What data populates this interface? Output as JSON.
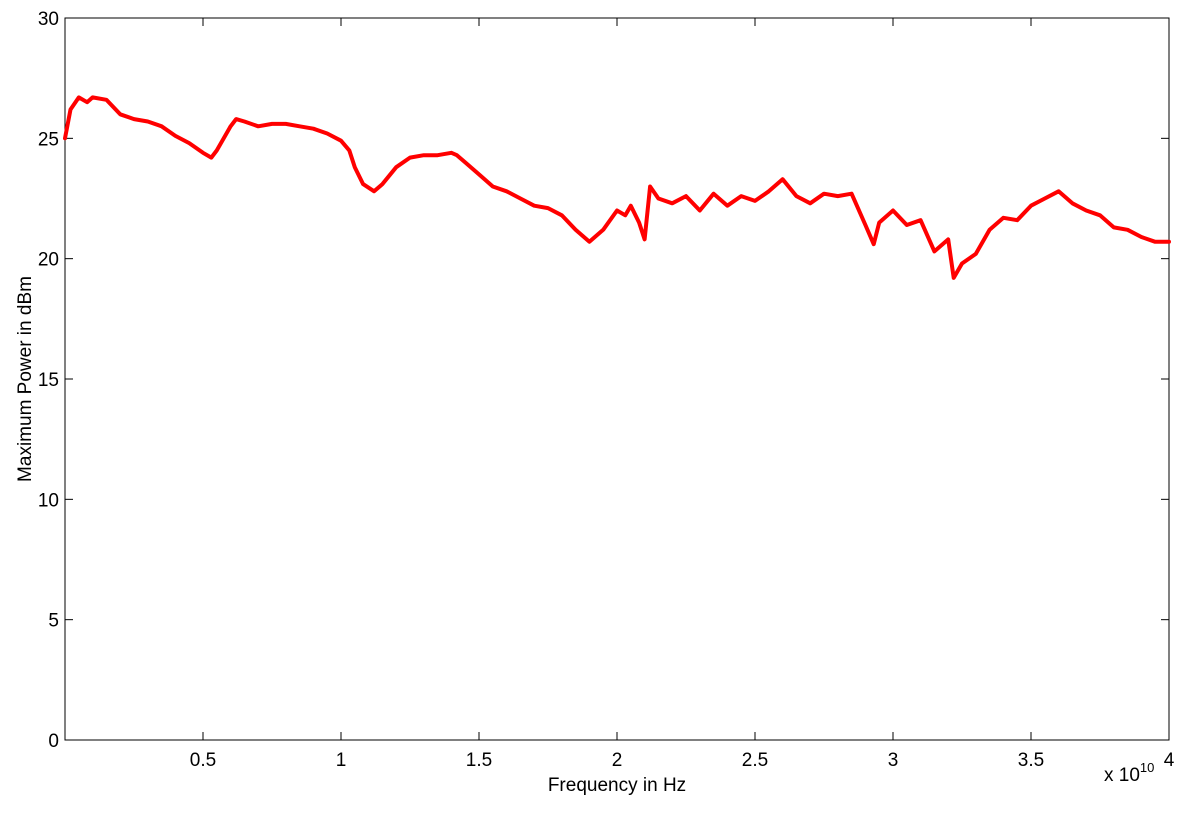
{
  "chart_data": {
    "type": "line",
    "xlabel": "Frequency in Hz",
    "ylabel": "Maximum Power in dBm",
    "x_multiplier_label": "x 10",
    "x_multiplier_exponent": "10",
    "xlim": [
      0,
      4
    ],
    "ylim": [
      0,
      30
    ],
    "x_ticks": [
      "0.5",
      "1",
      "1.5",
      "2",
      "2.5",
      "3",
      "3.5",
      "4"
    ],
    "y_ticks": [
      "0",
      "5",
      "10",
      "15",
      "20",
      "25",
      "30"
    ],
    "grid": true,
    "series": [
      {
        "color": "#ff0000",
        "x": [
          0.0,
          0.02,
          0.05,
          0.08,
          0.1,
          0.15,
          0.2,
          0.25,
          0.3,
          0.35,
          0.4,
          0.45,
          0.5,
          0.53,
          0.55,
          0.6,
          0.62,
          0.65,
          0.7,
          0.75,
          0.8,
          0.85,
          0.9,
          0.95,
          1.0,
          1.03,
          1.05,
          1.08,
          1.12,
          1.15,
          1.2,
          1.25,
          1.3,
          1.35,
          1.4,
          1.42,
          1.45,
          1.5,
          1.55,
          1.6,
          1.65,
          1.7,
          1.75,
          1.8,
          1.85,
          1.9,
          1.95,
          2.0,
          2.03,
          2.05,
          2.08,
          2.1,
          2.12,
          2.15,
          2.2,
          2.25,
          2.3,
          2.35,
          2.4,
          2.45,
          2.5,
          2.55,
          2.6,
          2.65,
          2.7,
          2.75,
          2.8,
          2.85,
          2.9,
          2.93,
          2.95,
          3.0,
          3.05,
          3.1,
          3.15,
          3.2,
          3.22,
          3.25,
          3.3,
          3.35,
          3.4,
          3.45,
          3.5,
          3.55,
          3.6,
          3.65,
          3.7,
          3.75,
          3.8,
          3.85,
          3.9,
          3.95,
          4.0
        ],
        "y": [
          25.0,
          26.2,
          26.7,
          26.5,
          26.7,
          26.6,
          26.0,
          25.8,
          25.7,
          25.5,
          25.1,
          24.8,
          24.4,
          24.2,
          24.5,
          25.5,
          25.8,
          25.7,
          25.5,
          25.6,
          25.6,
          25.5,
          25.4,
          25.2,
          24.9,
          24.5,
          23.8,
          23.1,
          22.8,
          23.1,
          23.8,
          24.2,
          24.3,
          24.3,
          24.4,
          24.3,
          24.0,
          23.5,
          23.0,
          22.8,
          22.5,
          22.2,
          22.1,
          21.8,
          21.2,
          20.7,
          21.2,
          22.0,
          21.8,
          22.2,
          21.5,
          20.8,
          23.0,
          22.5,
          22.3,
          22.6,
          22.0,
          22.7,
          22.2,
          22.6,
          22.4,
          22.8,
          23.3,
          22.6,
          22.3,
          22.7,
          22.6,
          22.7,
          21.4,
          20.6,
          21.5,
          22.0,
          21.4,
          21.6,
          20.3,
          20.8,
          19.2,
          19.8,
          20.2,
          21.2,
          21.7,
          21.6,
          22.2,
          22.5,
          22.8,
          22.3,
          22.0,
          21.8,
          21.3,
          21.2,
          20.9,
          20.7,
          20.7
        ]
      }
    ]
  }
}
